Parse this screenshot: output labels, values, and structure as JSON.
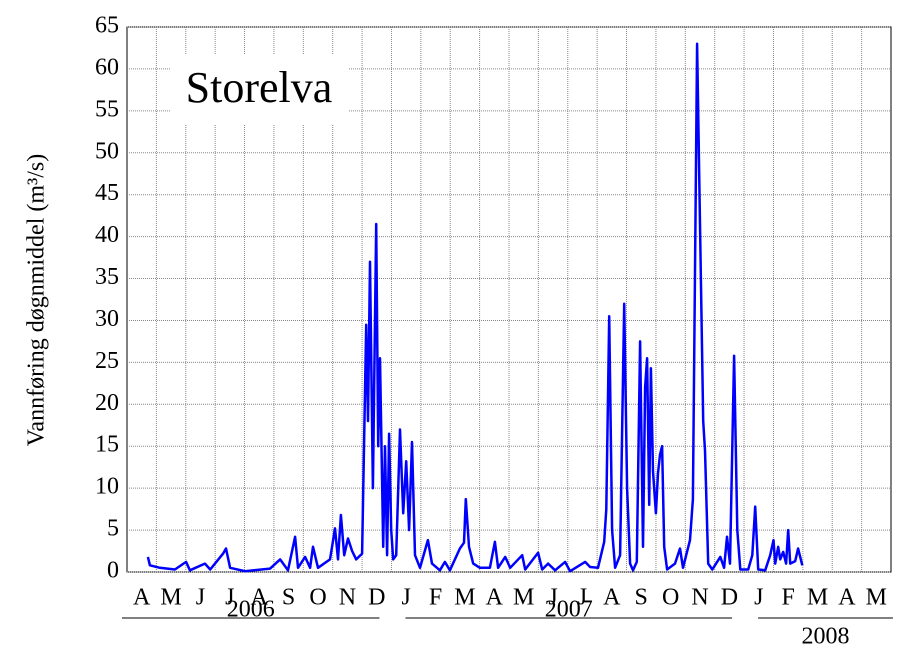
{
  "chart_data": {
    "type": "line",
    "annotation": "Storelva",
    "ylabel": "Vannføring døgnmiddel (m³/s)",
    "xlim": [
      0,
      26
    ],
    "ylim": [
      0,
      65
    ],
    "yticks": [
      0,
      5,
      10,
      15,
      20,
      25,
      30,
      35,
      40,
      45,
      50,
      55,
      60,
      65
    ],
    "grid": true,
    "xticks": [
      {
        "value": 0.5,
        "label": "A"
      },
      {
        "value": 1.5,
        "label": "M"
      },
      {
        "value": 2.5,
        "label": "J"
      },
      {
        "value": 3.5,
        "label": "J"
      },
      {
        "value": 4.5,
        "label": "A"
      },
      {
        "value": 5.5,
        "label": "S"
      },
      {
        "value": 6.5,
        "label": "O"
      },
      {
        "value": 7.5,
        "label": "N"
      },
      {
        "value": 8.5,
        "label": "D"
      },
      {
        "value": 9.5,
        "label": "J"
      },
      {
        "value": 10.5,
        "label": "F"
      },
      {
        "value": 11.5,
        "label": "M"
      },
      {
        "value": 12.5,
        "label": "A"
      },
      {
        "value": 13.5,
        "label": "M"
      },
      {
        "value": 14.5,
        "label": "J"
      },
      {
        "value": 15.5,
        "label": "J"
      },
      {
        "value": 16.5,
        "label": "A"
      },
      {
        "value": 17.5,
        "label": "S"
      },
      {
        "value": 18.5,
        "label": "O"
      },
      {
        "value": 19.5,
        "label": "N"
      },
      {
        "value": 20.5,
        "label": "D"
      },
      {
        "value": 21.5,
        "label": "J"
      },
      {
        "value": 22.5,
        "label": "F"
      },
      {
        "value": 23.5,
        "label": "M"
      },
      {
        "value": 24.5,
        "label": "A"
      },
      {
        "value": 25.5,
        "label": "M"
      }
    ],
    "years": [
      {
        "label": "2006",
        "start": 0,
        "end": 9
      },
      {
        "label": "2007",
        "start": 9,
        "end": 21
      },
      {
        "label": "2008",
        "start": 21,
        "end": 26
      }
    ],
    "series": [
      {
        "color": "#0000ff",
        "x": [
          0.71,
          0.78,
          1.12,
          1.63,
          2.01,
          2.14,
          2.65,
          2.83,
          3.27,
          3.37,
          3.51,
          4.02,
          4.87,
          5.21,
          5.48,
          5.72,
          5.82,
          6.06,
          6.23,
          6.33,
          6.5,
          6.91,
          7.08,
          7.18,
          7.28,
          7.39,
          7.52,
          7.66,
          7.8,
          8.0,
          8.14,
          8.2,
          8.27,
          8.37,
          8.48,
          8.55,
          8.61,
          8.72,
          8.78,
          8.85,
          8.92,
          8.99,
          9.06,
          9.16,
          9.29,
          9.4,
          9.5,
          9.6,
          9.7,
          9.8,
          9.97,
          10.24,
          10.38,
          10.65,
          10.82,
          10.99,
          11.33,
          11.47,
          11.53,
          11.64,
          11.78,
          12.01,
          12.35,
          12.52,
          12.63,
          12.87,
          13.04,
          13.45,
          13.55,
          13.99,
          14.13,
          14.33,
          14.57,
          14.91,
          15.08,
          15.59,
          15.76,
          16.03,
          16.24,
          16.31,
          16.41,
          16.51,
          16.61,
          16.78,
          16.92,
          17.02,
          17.12,
          17.22,
          17.35,
          17.46,
          17.56,
          17.63,
          17.7,
          17.77,
          17.83,
          17.9,
          18.0,
          18.07,
          18.14,
          18.21,
          18.28,
          18.38,
          18.65,
          18.82,
          18.92,
          19.16,
          19.26,
          19.4,
          19.5,
          19.61,
          19.67,
          19.78,
          19.92,
          20.19,
          20.32,
          20.42,
          20.52,
          20.66,
          20.77,
          20.87,
          21.14,
          21.28,
          21.38,
          21.48,
          21.72,
          21.89,
          22.0,
          22.06,
          22.16,
          22.23,
          22.33,
          22.43,
          22.5,
          22.57,
          22.74,
          22.84,
          22.98
        ],
        "values": [
          1.8,
          0.8,
          0.5,
          0.3,
          1.2,
          0.2,
          1,
          0.3,
          2.2,
          2.8,
          0.5,
          0.1,
          0.4,
          1.5,
          0.2,
          4.2,
          0.5,
          1.8,
          0.5,
          3,
          0.5,
          1.5,
          5.2,
          1.5,
          6.8,
          2,
          4,
          2.5,
          1.5,
          2.2,
          29.5,
          18,
          37,
          10,
          41.5,
          15,
          25.5,
          3,
          15,
          2,
          16.5,
          5,
          1.5,
          2,
          17,
          7,
          13.2,
          5,
          15.5,
          2,
          0.5,
          3.8,
          1,
          0.2,
          1.2,
          0.2,
          2.8,
          3.5,
          8.7,
          3,
          1,
          0.5,
          0.5,
          3.6,
          0.5,
          1.8,
          0.5,
          2,
          0.3,
          2.3,
          0.3,
          1,
          0.2,
          1.2,
          0.1,
          1.2,
          0.6,
          0.5,
          3.6,
          7.5,
          30.5,
          5,
          0.5,
          2,
          32,
          10,
          1,
          0.2,
          1.2,
          27.5,
          3,
          22,
          25.5,
          8,
          24.3,
          12,
          7,
          11.8,
          14,
          15,
          3,
          0.3,
          1,
          2.8,
          0.5,
          3.8,
          8.7,
          63,
          41.5,
          18,
          14.5,
          1,
          0.3,
          1.8,
          0.5,
          4.2,
          1,
          25.8,
          5,
          0.3,
          0.3,
          2,
          7.8,
          0.3,
          0.2,
          2,
          3.8,
          1,
          3,
          1.5,
          2.4,
          1,
          5,
          1,
          1.3,
          2.8,
          0.8
        ]
      }
    ]
  }
}
